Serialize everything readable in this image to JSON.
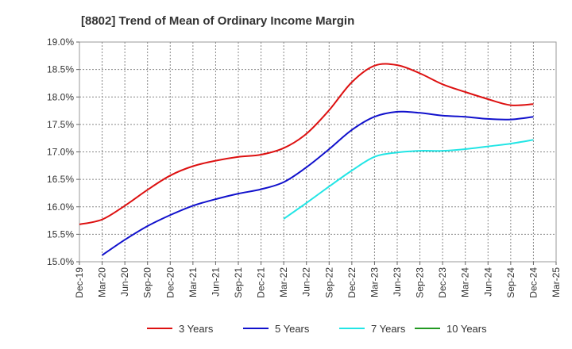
{
  "chart_data": {
    "type": "line",
    "title": "[8802]  Trend of Mean of Ordinary Income Margin",
    "xlabel": "",
    "ylabel": "",
    "x_ticks": [
      "Dec-19",
      "Mar-20",
      "Jun-20",
      "Sep-20",
      "Dec-20",
      "Mar-21",
      "Jun-21",
      "Sep-21",
      "Dec-21",
      "Mar-22",
      "Jun-22",
      "Sep-22",
      "Dec-22",
      "Mar-23",
      "Jun-23",
      "Sep-23",
      "Dec-23",
      "Mar-24",
      "Jun-24",
      "Sep-24",
      "Dec-24",
      "Mar-25"
    ],
    "y_ticks": [
      "15.0%",
      "15.5%",
      "16.0%",
      "16.5%",
      "17.0%",
      "17.5%",
      "18.0%",
      "18.5%",
      "19.0%"
    ],
    "ylim": [
      15.0,
      19.0
    ],
    "grid": true,
    "legend_position": "bottom",
    "series": [
      {
        "name": "3 Years",
        "color": "#dd1111",
        "values": [
          15.68,
          15.77,
          16.02,
          16.31,
          16.57,
          16.74,
          16.84,
          16.91,
          16.95,
          17.07,
          17.33,
          17.76,
          18.27,
          18.57,
          18.58,
          18.43,
          18.23,
          18.09,
          17.96,
          17.85,
          17.87,
          null
        ]
      },
      {
        "name": "5 Years",
        "color": "#1111cc",
        "values": [
          null,
          15.12,
          15.4,
          15.65,
          15.85,
          16.02,
          16.14,
          16.24,
          16.32,
          16.45,
          16.72,
          17.05,
          17.4,
          17.64,
          17.73,
          17.71,
          17.66,
          17.64,
          17.6,
          17.59,
          17.64,
          null
        ]
      },
      {
        "name": "7 Years",
        "color": "#22e5e5",
        "values": [
          null,
          null,
          null,
          null,
          null,
          null,
          null,
          null,
          null,
          15.78,
          16.07,
          16.37,
          16.66,
          16.91,
          16.99,
          17.02,
          17.02,
          17.05,
          17.1,
          17.15,
          17.22,
          null
        ]
      },
      {
        "name": "10 Years",
        "color": "#229922",
        "values": [
          null,
          null,
          null,
          null,
          null,
          null,
          null,
          null,
          null,
          null,
          null,
          null,
          null,
          null,
          null,
          null,
          null,
          null,
          null,
          null,
          null,
          null
        ]
      }
    ]
  }
}
